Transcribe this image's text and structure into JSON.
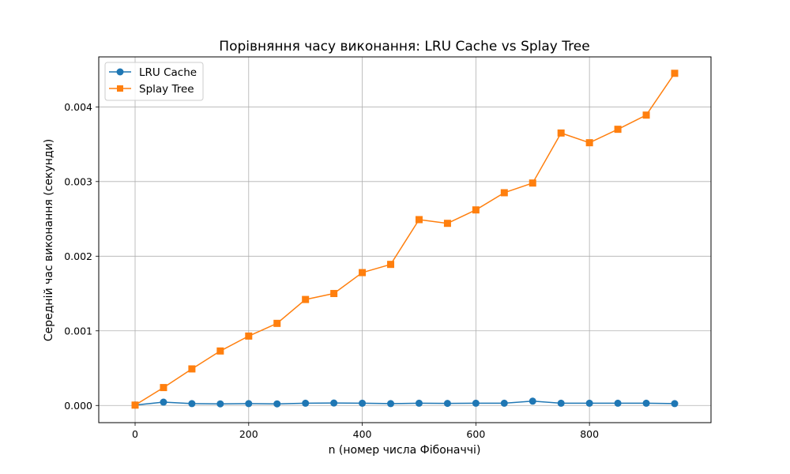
{
  "chart_data": {
    "type": "line",
    "title": "Порівняння часу виконання: LRU Cache vs Splay Tree",
    "xlabel": "n (номер числа Фібоначчі)",
    "ylabel": "Середній час виконання (секунди)",
    "x": [
      0,
      50,
      100,
      150,
      200,
      250,
      300,
      350,
      400,
      450,
      500,
      550,
      600,
      650,
      700,
      750,
      800,
      850,
      900,
      950
    ],
    "xlim": [
      -64,
      1014
    ],
    "ylim": [
      -0.00023,
      0.00467
    ],
    "xticks": [
      0,
      200,
      400,
      600,
      800
    ],
    "xtick_labels": [
      "0",
      "200",
      "400",
      "600",
      "800"
    ],
    "yticks": [
      0,
      0.001,
      0.002,
      0.003,
      0.004
    ],
    "ytick_labels": [
      "0.000",
      "0.001",
      "0.002",
      "0.003",
      "0.004"
    ],
    "grid": true,
    "legend_position": "upper-left",
    "series": [
      {
        "name": "LRU Cache",
        "color": "#1f77b4",
        "marker": "circle",
        "values": [
          5e-06,
          4.5e-05,
          2.5e-05,
          2.2e-05,
          2.5e-05,
          2.2e-05,
          3e-05,
          3.3e-05,
          3e-05,
          2.5e-05,
          3e-05,
          2.8e-05,
          3e-05,
          3e-05,
          5.8e-05,
          3e-05,
          3e-05,
          3e-05,
          3e-05,
          2.5e-05
        ]
      },
      {
        "name": "Splay Tree",
        "color": "#ff7f0e",
        "marker": "square",
        "values": [
          5e-06,
          0.00024,
          0.00049,
          0.00073,
          0.00093,
          0.0011,
          0.00142,
          0.0015,
          0.00178,
          0.00189,
          0.00249,
          0.00244,
          0.00262,
          0.00285,
          0.00298,
          0.00365,
          0.00352,
          0.0037,
          0.00389,
          0.00445
        ]
      }
    ]
  }
}
